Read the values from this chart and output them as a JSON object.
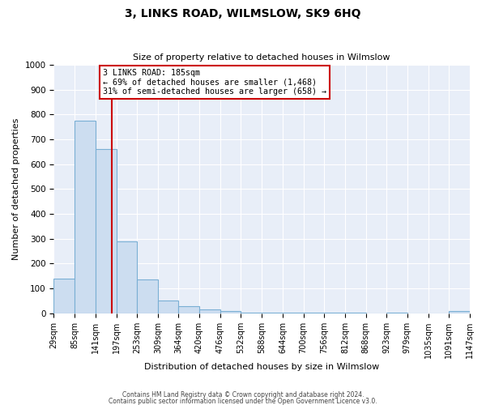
{
  "title": "3, LINKS ROAD, WILMSLOW, SK9 6HQ",
  "subtitle": "Size of property relative to detached houses in Wilmslow",
  "xlabel": "Distribution of detached houses by size in Wilmslow",
  "ylabel": "Number of detached properties",
  "bin_edges": [
    29,
    85,
    141,
    197,
    253,
    309,
    364,
    420,
    476,
    532,
    588,
    644,
    700,
    756,
    812,
    868,
    923,
    979,
    1035,
    1091,
    1147
  ],
  "bin_counts": [
    140,
    775,
    660,
    290,
    135,
    52,
    30,
    15,
    8,
    3,
    2,
    2,
    2,
    2,
    2,
    0,
    2,
    0,
    0,
    8
  ],
  "bar_facecolor": "#ccddf0",
  "bar_edgecolor": "#7aafd4",
  "property_size": 185,
  "vline_color": "#cc0000",
  "anno_line1": "3 LINKS ROAD: 185sqm",
  "anno_line2": "← 69% of detached houses are smaller (1,468)",
  "anno_line3": "31% of semi-detached houses are larger (658) →",
  "anno_box_facecolor": "#ffffff",
  "anno_box_edgecolor": "#cc0000",
  "ylim": [
    0,
    1000
  ],
  "yticks": [
    0,
    100,
    200,
    300,
    400,
    500,
    600,
    700,
    800,
    900,
    1000
  ],
  "tick_labels": [
    "29sqm",
    "85sqm",
    "141sqm",
    "197sqm",
    "253sqm",
    "309sqm",
    "364sqm",
    "420sqm",
    "476sqm",
    "532sqm",
    "588sqm",
    "644sqm",
    "700sqm",
    "756sqm",
    "812sqm",
    "868sqm",
    "923sqm",
    "979sqm",
    "1035sqm",
    "1091sqm",
    "1147sqm"
  ],
  "footnote1": "Contains HM Land Registry data © Crown copyright and database right 2024.",
  "footnote2": "Contains public sector information licensed under the Open Government Licence v3.0.",
  "fig_facecolor": "#ffffff",
  "axes_facecolor": "#e8eef8",
  "grid_color": "#ffffff",
  "title_fontsize": 10,
  "subtitle_fontsize": 8,
  "axis_label_fontsize": 8,
  "tick_fontsize": 7,
  "footnote_fontsize": 5.5
}
